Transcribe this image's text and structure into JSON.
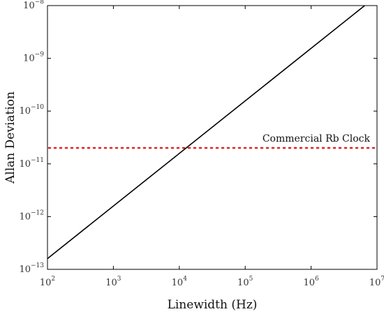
{
  "chart_data": {
    "type": "line",
    "xlabel": "Linewidth (Hz)",
    "ylabel": "Allan Deviation",
    "x_scale": "log",
    "y_scale": "log",
    "xlim": [
      100,
      10000000
    ],
    "ylim": [
      1e-13,
      1e-08
    ],
    "grid": false,
    "x_ticks": [
      {
        "base": "10",
        "exp": "2",
        "value": 100
      },
      {
        "base": "10",
        "exp": "3",
        "value": 1000
      },
      {
        "base": "10",
        "exp": "4",
        "value": 10000
      },
      {
        "base": "10",
        "exp": "5",
        "value": 100000
      },
      {
        "base": "10",
        "exp": "6",
        "value": 1000000
      },
      {
        "base": "10",
        "exp": "7",
        "value": 10000000
      }
    ],
    "y_ticks": [
      {
        "base": "10",
        "exp": "−13",
        "value": 1e-13
      },
      {
        "base": "10",
        "exp": "−12",
        "value": 1e-12
      },
      {
        "base": "10",
        "exp": "−11",
        "value": 1e-11
      },
      {
        "base": "10",
        "exp": "−10",
        "value": 1e-10
      },
      {
        "base": "10",
        "exp": "−9",
        "value": 1e-09
      },
      {
        "base": "10",
        "exp": "−8",
        "value": 1e-08
      }
    ],
    "series": [
      {
        "style": "solid",
        "color": "#000000",
        "x": [
          100,
          6500000
        ],
        "y": [
          1.6e-13,
          1e-08
        ]
      }
    ],
    "reference_lines": [
      {
        "label": "Commercial Rb Clock",
        "y": 2e-11,
        "style": "dotted",
        "color": "#e02020"
      }
    ]
  }
}
